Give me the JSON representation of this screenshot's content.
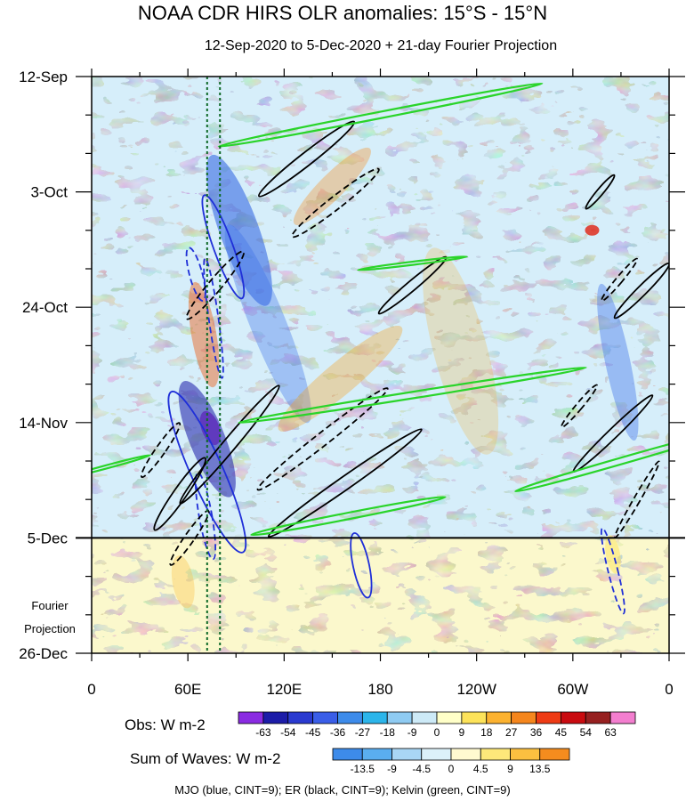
{
  "chart_data": {
    "type": "heatmap",
    "title": "NOAA CDR HIRS OLR anomalies: 15°S - 15°N",
    "subtitle": "12-Sep-2020 to 5-Dec-2020 + 21-day Fourier Projection",
    "x_ticks": [
      {
        "lon": 0,
        "label": "0"
      },
      {
        "lon": 60,
        "label": "60E"
      },
      {
        "lon": 120,
        "label": "120E"
      },
      {
        "lon": 180,
        "label": "180"
      },
      {
        "lon": 240,
        "label": "120W"
      },
      {
        "lon": 300,
        "label": "60W"
      },
      {
        "lon": 360,
        "label": "0"
      }
    ],
    "xlim": [
      0,
      360
    ],
    "y_ticks": [
      {
        "day": 0,
        "label": "12-Sep"
      },
      {
        "day": 21,
        "label": "3-Oct"
      },
      {
        "day": 42,
        "label": "24-Oct"
      },
      {
        "day": 63,
        "label": "14-Nov"
      },
      {
        "day": 84,
        "label": "5-Dec"
      },
      {
        "day": 105,
        "label": "26-Dec"
      }
    ],
    "ylim": [
      0,
      105
    ],
    "projection_start_day": 84,
    "projection_label": [
      "Fourier",
      "Projection"
    ],
    "reference_lons": [
      72,
      80
    ],
    "obs_colorbar": {
      "label": "Obs: W m-2",
      "levels": [
        "-63",
        "-54",
        "-45",
        "-36",
        "-27",
        "-18",
        "-9",
        "0",
        "9",
        "18",
        "27",
        "36",
        "45",
        "54",
        "63"
      ],
      "colors": [
        "#8a2be2",
        "#1c1ca8",
        "#2a3ad0",
        "#3a5ee8",
        "#3d8bea",
        "#2cb5ea",
        "#8fcbf2",
        "#cdeaf7",
        "#ffffc8",
        "#fde35a",
        "#fcb230",
        "#f5861d",
        "#ee3b14",
        "#c90b10",
        "#962020",
        "#f37ecf"
      ]
    },
    "waves_colorbar": {
      "label": "Sum of Waves: W m-2",
      "levels": [
        "-13.5",
        "-9",
        "-4.5",
        "0",
        "4.5",
        "9",
        "13.5"
      ],
      "colors": [
        "#3d8bea",
        "#5aaef0",
        "#a9d6f5",
        "#dcf1fa",
        "#fffad0",
        "#fde87a",
        "#fcc040",
        "#f58c1e"
      ]
    },
    "footnote": "MJO (blue, CINT=9); ER (black, CINT=9); Kelvin (green, CINT=9)",
    "series": [
      {
        "name": "MJO",
        "color": "#1f2fd8",
        "contours": [
          {
            "lon": 82,
            "day": 31,
            "rx": 6,
            "ry": 10,
            "rot": -20,
            "dash": false
          },
          {
            "lon": 65,
            "day": 36,
            "rx": 4,
            "ry": 5,
            "rot": -15,
            "dash": true
          },
          {
            "lon": 76,
            "day": 44,
            "rx": 3,
            "ry": 11,
            "rot": -8,
            "dash": true
          },
          {
            "lon": 72,
            "day": 72,
            "rx": 10,
            "ry": 16,
            "rot": -24,
            "dash": false
          },
          {
            "lon": 71,
            "day": 80,
            "rx": 4,
            "ry": 8,
            "rot": -10,
            "dash": true
          },
          {
            "lon": 168,
            "day": 89,
            "rx": 5,
            "ry": 6,
            "rot": -12,
            "dash": false
          },
          {
            "lon": 325,
            "day": 90,
            "rx": 3,
            "ry": 8,
            "rot": -14,
            "dash": true
          }
        ]
      },
      {
        "name": "ER",
        "color": "#000000",
        "contours": [
          {
            "lon": 134,
            "day": 15,
            "rx": 4,
            "ry": 11,
            "rot": 52,
            "dash": false
          },
          {
            "lon": 152,
            "day": 23,
            "rx": 4,
            "ry": 10,
            "rot": 52,
            "dash": true
          },
          {
            "lon": 200,
            "day": 38,
            "rx": 3,
            "ry": 8,
            "rot": 50,
            "dash": false
          },
          {
            "lon": 317,
            "day": 21,
            "rx": 2,
            "ry": 4,
            "rot": 40,
            "dash": false
          },
          {
            "lon": 329,
            "day": 37,
            "rx": 2,
            "ry": 5,
            "rot": 40,
            "dash": true
          },
          {
            "lon": 343,
            "day": 39,
            "rx": 3,
            "ry": 7,
            "rot": 45,
            "dash": false
          },
          {
            "lon": 77,
            "day": 38,
            "rx": 4,
            "ry": 8,
            "rot": 40,
            "dash": true
          },
          {
            "lon": 86,
            "day": 67,
            "rx": 4,
            "ry": 14,
            "rot": 40,
            "dash": false
          },
          {
            "lon": 144,
            "day": 66,
            "rx": 4,
            "ry": 15,
            "rot": 52,
            "dash": true
          },
          {
            "lon": 158,
            "day": 74,
            "rx": 4,
            "ry": 17,
            "rot": 55,
            "dash": false
          },
          {
            "lon": 325,
            "day": 65,
            "rx": 3,
            "ry": 10,
            "rot": 46,
            "dash": false
          },
          {
            "lon": 304,
            "day": 60,
            "rx": 2,
            "ry": 5,
            "rot": 40,
            "dash": true
          },
          {
            "lon": 340,
            "day": 77,
            "rx": 2,
            "ry": 8,
            "rot": 30,
            "dash": true
          },
          {
            "lon": 43,
            "day": 68,
            "rx": 3,
            "ry": 6,
            "rot": 35,
            "dash": true
          },
          {
            "lon": 55,
            "day": 76,
            "rx": 4,
            "ry": 8,
            "rot": 35,
            "dash": false
          },
          {
            "lon": 61,
            "day": 84,
            "rx": 3,
            "ry": 6,
            "rot": 35,
            "dash": true
          }
        ]
      },
      {
        "name": "Kelvin",
        "color": "#2ad42a",
        "contours": [
          {
            "lon": 180,
            "day": 7,
            "rx": 2,
            "ry": 30,
            "rot": 79,
            "dash": false
          },
          {
            "lon": 200,
            "day": 58,
            "rx": 2,
            "ry": 32,
            "rot": 81,
            "dash": false
          },
          {
            "lon": 330,
            "day": 70,
            "rx": 2,
            "ry": 20,
            "rot": 74,
            "dash": false
          },
          {
            "lon": 160,
            "day": 80,
            "rx": 2,
            "ry": 18,
            "rot": 79,
            "dash": false
          },
          {
            "lon": 200,
            "day": 34,
            "rx": 1,
            "ry": 10,
            "rot": 83,
            "dash": false
          },
          {
            "lon": 10,
            "day": 71,
            "rx": 1,
            "ry": 8,
            "rot": 75,
            "dash": false
          }
        ]
      }
    ]
  }
}
